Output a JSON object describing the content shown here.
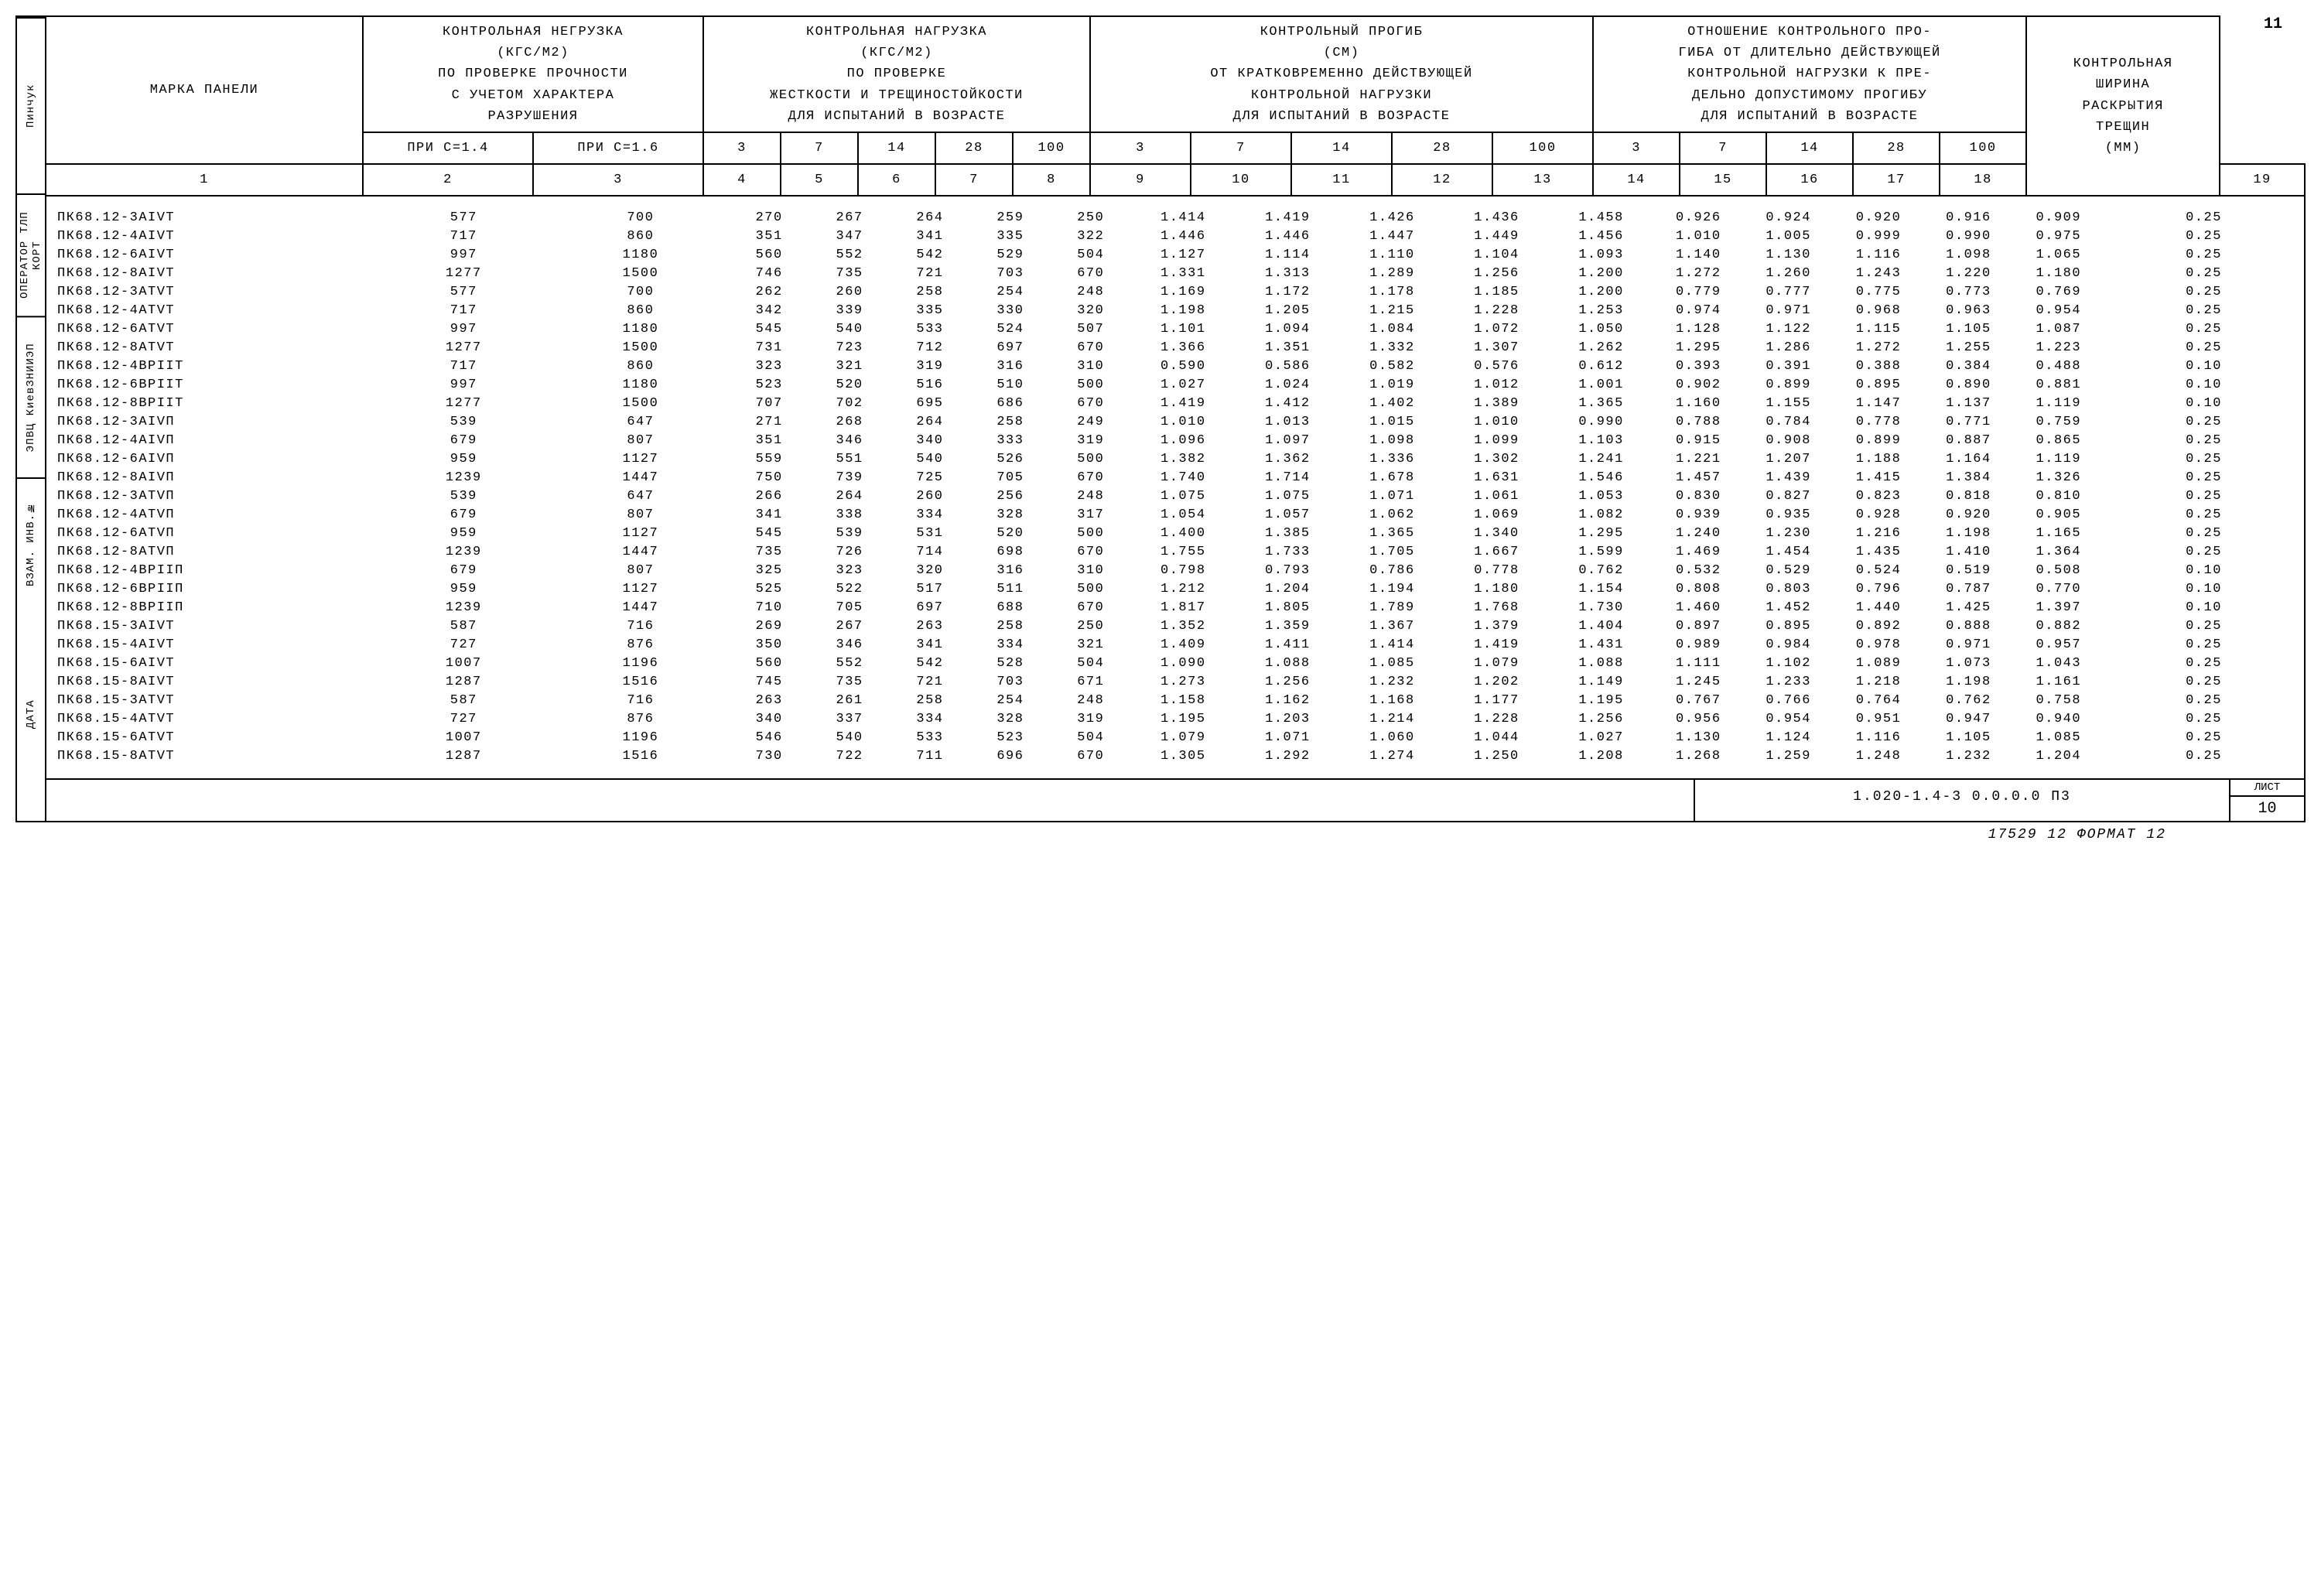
{
  "page_top": "11",
  "side_labels": [
    "Пинчук",
    "ОПЕРАТОР ТЛП КОРТ",
    "ЭПВЦ КиевЗНИИЭП",
    "ВЗАМ. ИНВ.№",
    "ДАТА"
  ],
  "headers": {
    "panel": "МАРКА   ПАНЕЛИ",
    "group1": "КОНТРОЛЬНАЯ НЕГРУЗКА\n(КГС/М2)\nПО ПРОВЕРКЕ ПРОЧНОСТИ\nС УЧЕТОМ ХАРАКТЕРА\nРАЗРУШЕНИЯ",
    "group2": "КОНТРОЛЬНАЯ НАГРУЗКА\n(КГС/М2)\nПО ПРОВЕРКЕ\nЖЕСТКОСТИ И ТРЕЩИНОСТОЙКОСТИ\nДЛЯ ИСПЫТАНИЙ В ВОЗРАСТЕ",
    "group3": "КОНТРОЛЬНЫЙ ПРОГИБ\n(СМ)\nОТ КРАТКОВРЕМЕННО ДЕЙСТВУЮЩЕЙ\nКОНТРОЛЬНОЙ НАГРУЗКИ\nДЛЯ ИСПЫТАНИЙ В ВОЗРАСТЕ",
    "group4": "ОТНОШЕНИЕ КОНТРОЛЬНОГО ПРО-\nГИБА ОТ ДЛИТЕЛЬНО ДЕЙСТВУЮЩЕЙ\nКОНТРОЛЬНОЙ НАГРУЗКИ К ПРЕ-\nДЕЛЬНО ДОПУСТИМОМУ ПРОГИБУ\nДЛЯ ИСПЫТАНИЙ В ВОЗРАСТЕ",
    "group5": "КОНТРОЛЬНАЯ\nШИРИНА\nРАСКРЫТИЯ\nТРЕЩИН\n(ММ)",
    "sub_g1": [
      "ПРИ С=1.4",
      "ПРИ С=1.6"
    ],
    "ages": [
      "3",
      "7",
      "14",
      "28",
      "100"
    ]
  },
  "colnums": [
    "1",
    "2",
    "3",
    "4",
    "5",
    "6",
    "7",
    "8",
    "9",
    "10",
    "11",
    "12",
    "13",
    "14",
    "15",
    "16",
    "17",
    "18",
    "19"
  ],
  "rows": [
    [
      "ПК68.12-3АIVТ",
      "577",
      "700",
      "270",
      "267",
      "264",
      "259",
      "250",
      "1.414",
      "1.419",
      "1.426",
      "1.436",
      "1.458",
      "0.926",
      "0.924",
      "0.920",
      "0.916",
      "0.909",
      "0.25"
    ],
    [
      "ПК68.12-4АIVТ",
      "717",
      "860",
      "351",
      "347",
      "341",
      "335",
      "322",
      "1.446",
      "1.446",
      "1.447",
      "1.449",
      "1.456",
      "1.010",
      "1.005",
      "0.999",
      "0.990",
      "0.975",
      "0.25"
    ],
    [
      "ПК68.12-6АIVТ",
      "997",
      "1180",
      "560",
      "552",
      "542",
      "529",
      "504",
      "1.127",
      "1.114",
      "1.110",
      "1.104",
      "1.093",
      "1.140",
      "1.130",
      "1.116",
      "1.098",
      "1.065",
      "0.25"
    ],
    [
      "ПК68.12-8АIVТ",
      "1277",
      "1500",
      "746",
      "735",
      "721",
      "703",
      "670",
      "1.331",
      "1.313",
      "1.289",
      "1.256",
      "1.200",
      "1.272",
      "1.260",
      "1.243",
      "1.220",
      "1.180",
      "0.25"
    ],
    [
      "ПК68.12-3АТVТ",
      "577",
      "700",
      "262",
      "260",
      "258",
      "254",
      "248",
      "1.169",
      "1.172",
      "1.178",
      "1.185",
      "1.200",
      "0.779",
      "0.777",
      "0.775",
      "0.773",
      "0.769",
      "0.25"
    ],
    [
      "ПК68.12-4АТVТ",
      "717",
      "860",
      "342",
      "339",
      "335",
      "330",
      "320",
      "1.198",
      "1.205",
      "1.215",
      "1.228",
      "1.253",
      "0.974",
      "0.971",
      "0.968",
      "0.963",
      "0.954",
      "0.25"
    ],
    [
      "ПК68.12-6АТVТ",
      "997",
      "1180",
      "545",
      "540",
      "533",
      "524",
      "507",
      "1.101",
      "1.094",
      "1.084",
      "1.072",
      "1.050",
      "1.128",
      "1.122",
      "1.115",
      "1.105",
      "1.087",
      "0.25"
    ],
    [
      "ПК68.12-8АТVТ",
      "1277",
      "1500",
      "731",
      "723",
      "712",
      "697",
      "670",
      "1.366",
      "1.351",
      "1.332",
      "1.307",
      "1.262",
      "1.295",
      "1.286",
      "1.272",
      "1.255",
      "1.223",
      "0.25"
    ],
    [
      "ПК68.12-4ВРIIТ",
      "717",
      "860",
      "323",
      "321",
      "319",
      "316",
      "310",
      "0.590",
      "0.586",
      "0.582",
      "0.576",
      "0.612",
      "0.393",
      "0.391",
      "0.388",
      "0.384",
      "0.488",
      "0.10"
    ],
    [
      "ПК68.12-6ВРIIТ",
      "997",
      "1180",
      "523",
      "520",
      "516",
      "510",
      "500",
      "1.027",
      "1.024",
      "1.019",
      "1.012",
      "1.001",
      "0.902",
      "0.899",
      "0.895",
      "0.890",
      "0.881",
      "0.10"
    ],
    [
      "ПК68.12-8ВРIIТ",
      "1277",
      "1500",
      "707",
      "702",
      "695",
      "686",
      "670",
      "1.419",
      "1.412",
      "1.402",
      "1.389",
      "1.365",
      "1.160",
      "1.155",
      "1.147",
      "1.137",
      "1.119",
      "0.10"
    ],
    [
      "ПК68.12-3АIVП",
      "539",
      "647",
      "271",
      "268",
      "264",
      "258",
      "249",
      "1.010",
      "1.013",
      "1.015",
      "1.010",
      "0.990",
      "0.788",
      "0.784",
      "0.778",
      "0.771",
      "0.759",
      "0.25"
    ],
    [
      "ПК68.12-4АIVП",
      "679",
      "807",
      "351",
      "346",
      "340",
      "333",
      "319",
      "1.096",
      "1.097",
      "1.098",
      "1.099",
      "1.103",
      "0.915",
      "0.908",
      "0.899",
      "0.887",
      "0.865",
      "0.25"
    ],
    [
      "ПК68.12-6АIVП",
      "959",
      "1127",
      "559",
      "551",
      "540",
      "526",
      "500",
      "1.382",
      "1.362",
      "1.336",
      "1.302",
      "1.241",
      "1.221",
      "1.207",
      "1.188",
      "1.164",
      "1.119",
      "0.25"
    ],
    [
      "ПК68.12-8АIVП",
      "1239",
      "1447",
      "750",
      "739",
      "725",
      "705",
      "670",
      "1.740",
      "1.714",
      "1.678",
      "1.631",
      "1.546",
      "1.457",
      "1.439",
      "1.415",
      "1.384",
      "1.326",
      "0.25"
    ],
    [
      "ПК68.12-3АТVП",
      "539",
      "647",
      "266",
      "264",
      "260",
      "256",
      "248",
      "1.075",
      "1.075",
      "1.071",
      "1.061",
      "1.053",
      "0.830",
      "0.827",
      "0.823",
      "0.818",
      "0.810",
      "0.25"
    ],
    [
      "ПК68.12-4АТVП",
      "679",
      "807",
      "341",
      "338",
      "334",
      "328",
      "317",
      "1.054",
      "1.057",
      "1.062",
      "1.069",
      "1.082",
      "0.939",
      "0.935",
      "0.928",
      "0.920",
      "0.905",
      "0.25"
    ],
    [
      "ПК68.12-6АТVП",
      "959",
      "1127",
      "545",
      "539",
      "531",
      "520",
      "500",
      "1.400",
      "1.385",
      "1.365",
      "1.340",
      "1.295",
      "1.240",
      "1.230",
      "1.216",
      "1.198",
      "1.165",
      "0.25"
    ],
    [
      "ПК68.12-8АТVП",
      "1239",
      "1447",
      "735",
      "726",
      "714",
      "698",
      "670",
      "1.755",
      "1.733",
      "1.705",
      "1.667",
      "1.599",
      "1.469",
      "1.454",
      "1.435",
      "1.410",
      "1.364",
      "0.25"
    ],
    [
      "ПК68.12-4ВРIIП",
      "679",
      "807",
      "325",
      "323",
      "320",
      "316",
      "310",
      "0.798",
      "0.793",
      "0.786",
      "0.778",
      "0.762",
      "0.532",
      "0.529",
      "0.524",
      "0.519",
      "0.508",
      "0.10"
    ],
    [
      "ПК68.12-6ВРIIП",
      "959",
      "1127",
      "525",
      "522",
      "517",
      "511",
      "500",
      "1.212",
      "1.204",
      "1.194",
      "1.180",
      "1.154",
      "0.808",
      "0.803",
      "0.796",
      "0.787",
      "0.770",
      "0.10"
    ],
    [
      "ПК68.12-8ВРIIП",
      "1239",
      "1447",
      "710",
      "705",
      "697",
      "688",
      "670",
      "1.817",
      "1.805",
      "1.789",
      "1.768",
      "1.730",
      "1.460",
      "1.452",
      "1.440",
      "1.425",
      "1.397",
      "0.10"
    ],
    [
      "ПК68.15-3АIVТ",
      "587",
      "716",
      "269",
      "267",
      "263",
      "258",
      "250",
      "1.352",
      "1.359",
      "1.367",
      "1.379",
      "1.404",
      "0.897",
      "0.895",
      "0.892",
      "0.888",
      "0.882",
      "0.25"
    ],
    [
      "ПК68.15-4АIVТ",
      "727",
      "876",
      "350",
      "346",
      "341",
      "334",
      "321",
      "1.409",
      "1.411",
      "1.414",
      "1.419",
      "1.431",
      "0.989",
      "0.984",
      "0.978",
      "0.971",
      "0.957",
      "0.25"
    ],
    [
      "ПК68.15-6АIVТ",
      "1007",
      "1196",
      "560",
      "552",
      "542",
      "528",
      "504",
      "1.090",
      "1.088",
      "1.085",
      "1.079",
      "1.088",
      "1.111",
      "1.102",
      "1.089",
      "1.073",
      "1.043",
      "0.25"
    ],
    [
      "ПК68.15-8АIVТ",
      "1287",
      "1516",
      "745",
      "735",
      "721",
      "703",
      "671",
      "1.273",
      "1.256",
      "1.232",
      "1.202",
      "1.149",
      "1.245",
      "1.233",
      "1.218",
      "1.198",
      "1.161",
      "0.25"
    ],
    [
      "ПК68.15-3АТVТ",
      "587",
      "716",
      "263",
      "261",
      "258",
      "254",
      "248",
      "1.158",
      "1.162",
      "1.168",
      "1.177",
      "1.195",
      "0.767",
      "0.766",
      "0.764",
      "0.762",
      "0.758",
      "0.25"
    ],
    [
      "ПК68.15-4АТVТ",
      "727",
      "876",
      "340",
      "337",
      "334",
      "328",
      "319",
      "1.195",
      "1.203",
      "1.214",
      "1.228",
      "1.256",
      "0.956",
      "0.954",
      "0.951",
      "0.947",
      "0.940",
      "0.25"
    ],
    [
      "ПК68.15-6АТVТ",
      "1007",
      "1196",
      "546",
      "540",
      "533",
      "523",
      "504",
      "1.079",
      "1.071",
      "1.060",
      "1.044",
      "1.027",
      "1.130",
      "1.124",
      "1.116",
      "1.105",
      "1.085",
      "0.25"
    ],
    [
      "ПК68.15-8АТVТ",
      "1287",
      "1516",
      "730",
      "722",
      "711",
      "696",
      "670",
      "1.305",
      "1.292",
      "1.274",
      "1.250",
      "1.208",
      "1.268",
      "1.259",
      "1.248",
      "1.232",
      "1.204",
      "0.25"
    ]
  ],
  "footer": {
    "doc": "1.020-1.4-3 0.0.0.0  П3",
    "sheet_label": "ЛИСТ",
    "sheet_num": "10"
  },
  "bottom": "17529   12  ФОРМАТ 12",
  "widths": {
    "panel": 410,
    "c14": 220,
    "c16": 220,
    "age_g2": 100,
    "age_g3": 130,
    "age_g4": 112,
    "crack": 250
  }
}
